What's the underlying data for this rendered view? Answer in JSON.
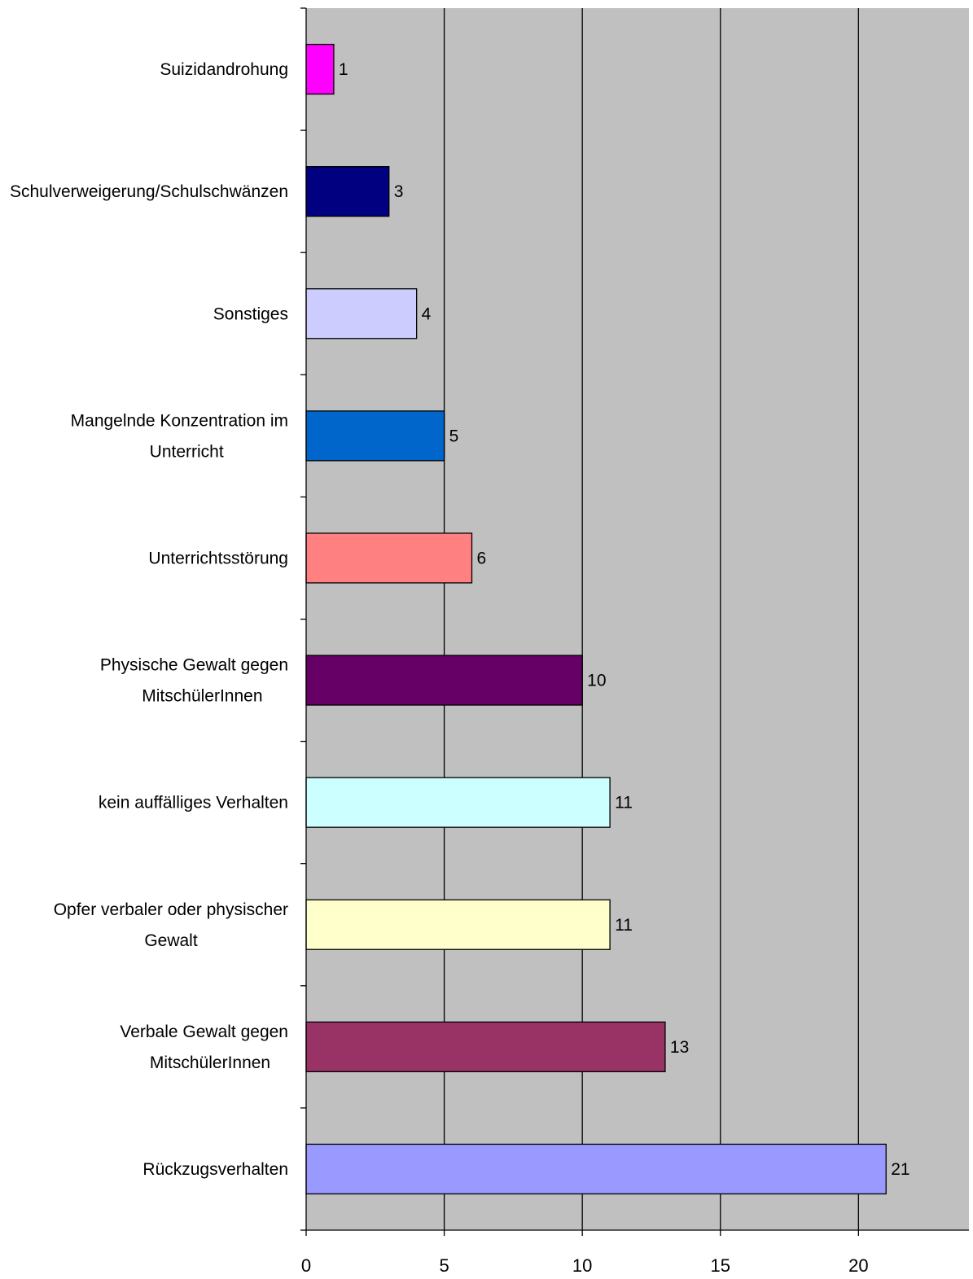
{
  "chart_data": {
    "type": "bar",
    "orientation": "horizontal",
    "title": "",
    "xlabel": "",
    "ylabel": "",
    "xlim": [
      0,
      24
    ],
    "x_ticks": [
      0,
      5,
      10,
      15,
      20
    ],
    "grid": "vertical lines",
    "legend": "none",
    "background_color": "#c0c0c0",
    "categories": [
      [
        "Suizidandrohung"
      ],
      [
        "Schulverweigerung/Schulschwänzen"
      ],
      [
        "Sonstiges"
      ],
      [
        "Mangelnde Konzentration im",
        "Unterricht"
      ],
      [
        "Unterrichtsstörung"
      ],
      [
        "Physische Gewalt gegen",
        "MitschülerInnen"
      ],
      [
        "kein auffälliges Verhalten"
      ],
      [
        "Opfer verbaler oder physischer",
        "Gewalt"
      ],
      [
        "Verbale Gewalt gegen",
        "MitschülerInnen"
      ],
      [
        "Rückzugsverhalten"
      ]
    ],
    "values": [
      1,
      3,
      4,
      5,
      6,
      10,
      11,
      11,
      13,
      21
    ],
    "bar_colors": [
      "#ff00ff",
      "#000080",
      "#ccccff",
      "#0066cc",
      "#ff8080",
      "#660066",
      "#ccffff",
      "#ffffcc",
      "#993366",
      "#9999ff"
    ]
  }
}
